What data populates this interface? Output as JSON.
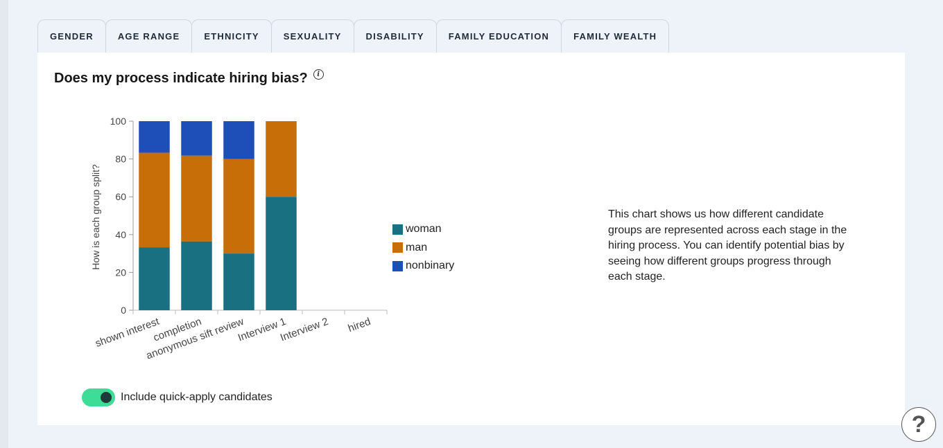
{
  "tabs": [
    {
      "label": "GENDER",
      "active": true
    },
    {
      "label": "AGE RANGE",
      "active": false
    },
    {
      "label": "ETHNICITY",
      "active": false
    },
    {
      "label": "SEXUALITY",
      "active": false
    },
    {
      "label": "DISABILITY",
      "active": false
    },
    {
      "label": "FAMILY EDUCATION",
      "active": false
    },
    {
      "label": "FAMILY WEALTH",
      "active": false
    }
  ],
  "panel": {
    "title": "Does my process indicate hiring bias?",
    "info_icon": "info-icon",
    "description": "This chart shows us how different candidate groups are represented across each stage in the hiring process. You can identify potential bias by seeing how different groups progress through each stage."
  },
  "toggle": {
    "label": "Include quick-apply candidates",
    "checked": true
  },
  "help": {
    "label": "?"
  },
  "chart_data": {
    "type": "bar",
    "stacked": true,
    "title": "",
    "xlabel": "",
    "ylabel": "How is each group split?",
    "ylim": [
      0,
      100
    ],
    "yticks": [
      0,
      20,
      40,
      60,
      80,
      100
    ],
    "categories": [
      "shown interest",
      "completion",
      "anonymous sift review",
      "Interview 1",
      "Interview 2",
      "hired"
    ],
    "series": [
      {
        "name": "woman",
        "color": "#187080",
        "values": [
          33.3,
          36.4,
          30,
          60,
          0,
          0
        ]
      },
      {
        "name": "man",
        "color": "#c76e08",
        "values": [
          50,
          45.4,
          50,
          40,
          0,
          0
        ]
      },
      {
        "name": "nonbinary",
        "color": "#1e4fb8",
        "values": [
          16.7,
          18.2,
          20,
          0,
          0,
          0
        ]
      }
    ],
    "legend_position": "right"
  }
}
